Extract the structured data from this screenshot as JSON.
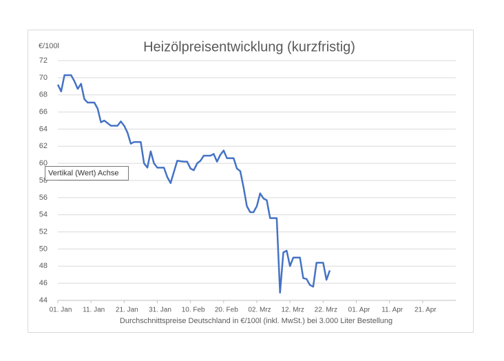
{
  "chart_data": {
    "type": "line",
    "title": "Heizölpreisentwicklung (kurzfristig)",
    "y_label": "€/100l",
    "x_label": "Durchschnittspreise Deutschland in €/100l (inkl. MwSt.) bei 3.000 Liter Bestellung",
    "tooltip": "Vertikal (Wert) Achse",
    "xlim": [
      0,
      120
    ],
    "xticks": [
      {
        "value": 0,
        "label": "01. Jan"
      },
      {
        "value": 10,
        "label": "11. Jan"
      },
      {
        "value": 20,
        "label": "21. Jan"
      },
      {
        "value": 30,
        "label": "31. Jan"
      },
      {
        "value": 40,
        "label": "10. Feb"
      },
      {
        "value": 50,
        "label": "20. Feb"
      },
      {
        "value": 60,
        "label": "02. Mrz"
      },
      {
        "value": 70,
        "label": "12. Mrz"
      },
      {
        "value": 80,
        "label": "22. Mrz"
      },
      {
        "value": 90,
        "label": "01. Apr"
      },
      {
        "value": 100,
        "label": "11. Apr"
      },
      {
        "value": 110,
        "label": "21. Apr"
      }
    ],
    "ylim": [
      44,
      72
    ],
    "yticks": [
      44,
      46,
      48,
      50,
      52,
      54,
      56,
      58,
      60,
      62,
      64,
      66,
      68,
      70,
      72
    ],
    "grid": true,
    "x": [
      0,
      1,
      2,
      4,
      5,
      6,
      7,
      8,
      9,
      11,
      12,
      13,
      14,
      16,
      18,
      19,
      20,
      21,
      22,
      23,
      25,
      26,
      27,
      28,
      29,
      30,
      32,
      33,
      34,
      35,
      36,
      38,
      39,
      40,
      41,
      42,
      43,
      44,
      46,
      47,
      48,
      49,
      50,
      51,
      53,
      54,
      55,
      56,
      57,
      58,
      59,
      60,
      61,
      62,
      63,
      64,
      66,
      67,
      68,
      69,
      70,
      71,
      73,
      74,
      75,
      76,
      77,
      78,
      80,
      81,
      82
    ],
    "series": [
      {
        "color": "#4472c4",
        "values": [
          69.2,
          68.4,
          70.3,
          70.3,
          69.6,
          68.7,
          69.3,
          67.5,
          67.1,
          67.1,
          66.4,
          64.8,
          65.0,
          64.4,
          64.4,
          64.9,
          64.4,
          63.6,
          62.3,
          62.5,
          62.5,
          60.0,
          59.5,
          61.4,
          60.0,
          59.5,
          59.5,
          58.4,
          57.7,
          59.0,
          60.3,
          60.2,
          60.2,
          59.4,
          59.2,
          60.0,
          60.3,
          60.9,
          60.9,
          61.1,
          60.2,
          61.0,
          61.5,
          60.6,
          60.6,
          59.4,
          59.1,
          57.2,
          55.0,
          54.3,
          54.3,
          55.0,
          56.5,
          55.9,
          55.7,
          53.6,
          53.6,
          44.9,
          49.6,
          49.8,
          48.0,
          49.0,
          49.0,
          46.6,
          46.5,
          45.8,
          45.6,
          48.4,
          48.4,
          46.4,
          47.5
        ]
      }
    ]
  }
}
